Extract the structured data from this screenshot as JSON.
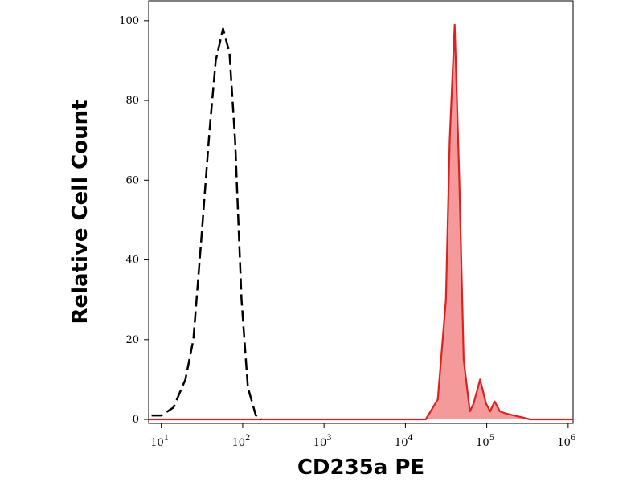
{
  "chart_data": {
    "type": "histogram-overlay",
    "xlabel": "CD235a PE",
    "ylabel": "Relative Cell Count",
    "xscale": "log",
    "xlim": [
      7,
      1150000
    ],
    "ylim": [
      -1,
      105
    ],
    "xticks": [
      {
        "value": 10,
        "label": "10",
        "exponent": "1"
      },
      {
        "value": 100,
        "label": "10",
        "exponent": "2"
      },
      {
        "value": 1000,
        "label": "10",
        "exponent": "3"
      },
      {
        "value": 10000,
        "label": "10",
        "exponent": "4"
      },
      {
        "value": 100000,
        "label": "10",
        "exponent": "5"
      },
      {
        "value": 1000000,
        "label": "10",
        "exponent": "6"
      }
    ],
    "yticks": [
      0,
      20,
      40,
      60,
      80,
      100
    ],
    "series": [
      {
        "color": "#000000",
        "dashed": true,
        "filled": false,
        "x": [
          7.6,
          10,
          14.1,
          19.8,
          24.8,
          31,
          39,
          46.7,
          57.4,
          68.8,
          80.8,
          96.9,
          115.8,
          145,
          170
        ],
        "values": [
          1,
          1,
          3,
          10,
          20,
          45,
          72,
          90,
          98,
          92,
          70,
          30,
          8,
          1,
          0
        ]
      },
      {
        "color": "#e02020",
        "fill": "#f59a9a",
        "dashed": false,
        "filled": true,
        "x": [
          7,
          17800,
          25000,
          31500,
          35000,
          40360,
          46000,
          52000,
          62000,
          69000,
          82800,
          98000,
          110000,
          125000,
          145000,
          170000,
          214000,
          275000,
          340000,
          1150000
        ],
        "values": [
          0,
          0,
          5,
          30,
          70,
          99,
          60,
          15,
          2,
          4,
          10,
          4,
          2,
          4.5,
          2,
          1.5,
          1,
          0.5,
          0,
          0
        ]
      }
    ]
  }
}
